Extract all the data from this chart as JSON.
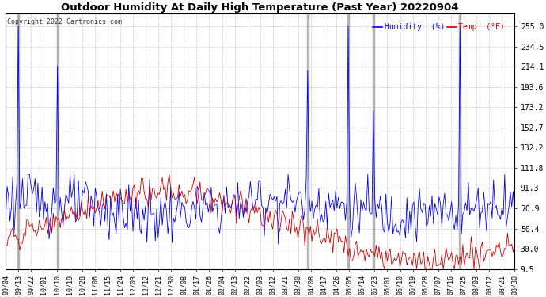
{
  "title": "Outdoor Humidity At Daily High Temperature (Past Year) 20220904",
  "copyright": "Copyright 2022 Cartronics.com",
  "legend_humidity": "Humidity  (%)",
  "legend_temp": "Temp  (°F)",
  "background_color": "#ffffff",
  "plot_bg_color": "#ffffff",
  "grid_color": "#bbbbbb",
  "title_fontsize": 10,
  "ylabel_right_values": [
    255.0,
    234.5,
    214.1,
    193.6,
    173.2,
    152.7,
    132.2,
    111.8,
    91.3,
    70.9,
    50.4,
    30.0,
    9.5
  ],
  "ymin": 9.5,
  "ymax": 268.0,
  "humidity_color": "#0000ff",
  "temp_color": "#cc0000",
  "spike_color": "#888888",
  "x_labels": [
    "09/04",
    "09/13",
    "09/22",
    "10/01",
    "10/10",
    "10/19",
    "10/28",
    "11/06",
    "11/15",
    "11/24",
    "12/03",
    "12/12",
    "12/21",
    "12/30",
    "01/08",
    "01/17",
    "01/26",
    "02/04",
    "02/13",
    "02/22",
    "03/03",
    "03/12",
    "03/21",
    "03/30",
    "04/08",
    "04/17",
    "04/26",
    "05/05",
    "05/14",
    "05/23",
    "06/01",
    "06/10",
    "06/19",
    "06/28",
    "07/07",
    "07/16",
    "07/25",
    "08/03",
    "08/12",
    "08/21",
    "08/30"
  ],
  "spike_positions": [
    9,
    37,
    216,
    245,
    263,
    325
  ],
  "n_points": 365,
  "humidity_seed": 123,
  "temp_seed": 456
}
